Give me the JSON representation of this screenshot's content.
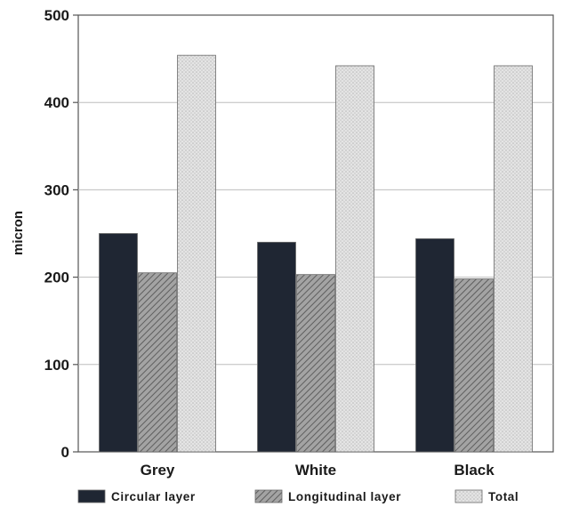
{
  "chart_data": {
    "type": "bar",
    "ylabel": "micron",
    "ylim": [
      0,
      500
    ],
    "yticks": [
      0,
      100,
      200,
      300,
      400,
      500
    ],
    "grid": true,
    "legend_position": "bottom",
    "categories": [
      "Grey",
      "White",
      "Black"
    ],
    "series": [
      {
        "name": "Circular layer",
        "values": [
          250,
          240,
          244
        ],
        "color": "#1f2633",
        "pattern": "solid"
      },
      {
        "name": "Longitudinal layer",
        "values": [
          205,
          203,
          198
        ],
        "color": "#8a8a8a",
        "pattern": "hatch"
      },
      {
        "name": "Total",
        "values": [
          454,
          442,
          442
        ],
        "color": "#dcdcdc",
        "pattern": "dots"
      }
    ]
  }
}
